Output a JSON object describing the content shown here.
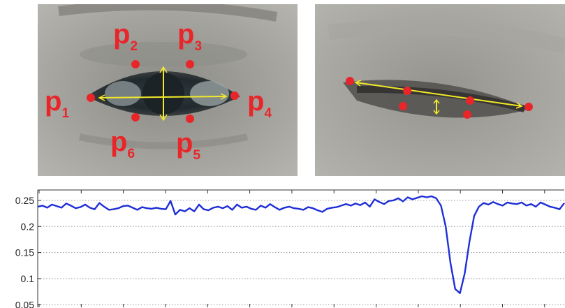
{
  "open_eye": {
    "landmarks": [
      {
        "main": "p",
        "sub": "1"
      },
      {
        "main": "p",
        "sub": "2"
      },
      {
        "main": "p",
        "sub": "3"
      },
      {
        "main": "p",
        "sub": "4"
      },
      {
        "main": "p",
        "sub": "5"
      },
      {
        "main": "p",
        "sub": "6"
      }
    ]
  },
  "colors": {
    "landmark": "#e8262a",
    "measure_line": "#f2ea2a",
    "series_line": "#1f2fd6"
  },
  "chart_data": {
    "type": "line",
    "title": "",
    "xlabel": "",
    "ylabel": "",
    "ylim": [
      0.045,
      0.27
    ],
    "yticks": [
      "0.25",
      "0.2",
      "0.15",
      "0.1",
      "0.05"
    ],
    "grid": "horizontal dotted",
    "x_tick_count": 13,
    "series": [
      {
        "values": [
          0.238,
          0.24,
          0.236,
          0.242,
          0.239,
          0.236,
          0.244,
          0.24,
          0.235,
          0.237,
          0.242,
          0.236,
          0.233,
          0.245,
          0.238,
          0.232,
          0.233,
          0.235,
          0.239,
          0.24,
          0.236,
          0.232,
          0.237,
          0.235,
          0.234,
          0.236,
          0.234,
          0.233,
          0.249,
          0.223,
          0.232,
          0.229,
          0.235,
          0.229,
          0.242,
          0.233,
          0.231,
          0.236,
          0.238,
          0.235,
          0.239,
          0.232,
          0.242,
          0.236,
          0.238,
          0.234,
          0.232,
          0.24,
          0.236,
          0.243,
          0.237,
          0.232,
          0.236,
          0.238,
          0.235,
          0.234,
          0.232,
          0.237,
          0.235,
          0.231,
          0.228,
          0.234,
          0.236,
          0.237,
          0.24,
          0.243,
          0.24,
          0.244,
          0.241,
          0.246,
          0.238,
          0.252,
          0.247,
          0.243,
          0.249,
          0.25,
          0.254,
          0.248,
          0.256,
          0.252,
          0.255,
          0.258,
          0.256,
          0.258,
          0.254,
          0.24,
          0.2,
          0.13,
          0.08,
          0.072,
          0.11,
          0.17,
          0.22,
          0.238,
          0.245,
          0.242,
          0.247,
          0.243,
          0.24,
          0.246,
          0.244,
          0.243,
          0.246,
          0.24,
          0.243,
          0.238,
          0.246,
          0.242,
          0.238,
          0.236,
          0.233,
          0.245
        ]
      }
    ]
  }
}
